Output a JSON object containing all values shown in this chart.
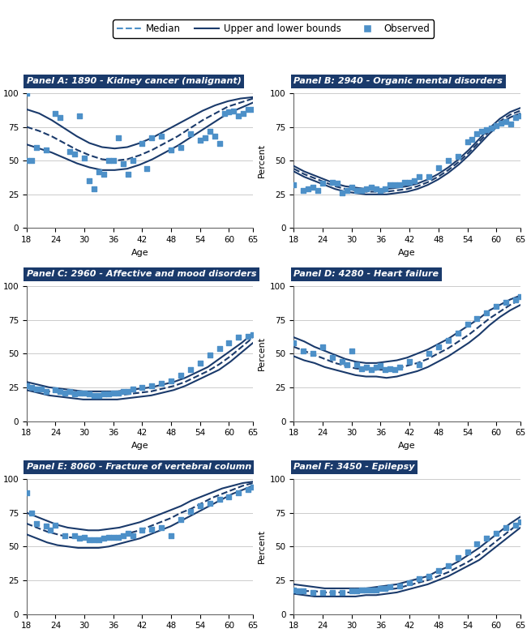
{
  "panels": [
    {
      "label": "Panel A: 1890 - Kidney cancer (malignant)",
      "median": [
        75,
        72,
        68,
        63,
        58,
        54,
        51,
        50,
        51,
        54,
        58,
        63,
        68,
        74,
        80,
        85,
        90,
        93,
        96
      ],
      "upper": [
        88,
        85,
        80,
        74,
        68,
        63,
        60,
        59,
        60,
        63,
        67,
        72,
        77,
        82,
        87,
        91,
        94,
        96,
        97
      ],
      "lower": [
        62,
        59,
        56,
        52,
        48,
        45,
        43,
        43,
        44,
        47,
        51,
        56,
        61,
        67,
        73,
        79,
        85,
        89,
        93
      ],
      "obs_x": [
        18,
        18,
        19,
        20,
        22,
        24,
        25,
        27,
        28,
        29,
        30,
        31,
        32,
        33,
        34,
        35,
        36,
        37,
        38,
        39,
        40,
        42,
        43,
        44,
        46,
        48,
        50,
        52,
        54,
        55,
        56,
        57,
        58,
        59,
        60,
        61,
        62,
        63,
        64,
        65
      ],
      "obs_y": [
        50,
        100,
        50,
        60,
        58,
        85,
        82,
        57,
        55,
        83,
        52,
        35,
        29,
        42,
        40,
        50,
        50,
        67,
        48,
        40,
        50,
        63,
        44,
        67,
        68,
        58,
        60,
        70,
        65,
        67,
        72,
        68,
        63,
        85,
        86,
        87,
        83,
        85,
        88,
        88
      ]
    },
    {
      "label": "Panel B: 2940 - Organic mental disorders",
      "median": [
        44,
        40,
        37,
        34,
        31,
        29,
        28,
        27,
        27,
        27,
        28,
        29,
        31,
        34,
        38,
        43,
        49,
        56,
        64,
        72,
        79,
        84,
        87
      ],
      "upper": [
        46,
        42,
        39,
        36,
        33,
        31,
        30,
        29,
        29,
        29,
        30,
        31,
        33,
        36,
        40,
        45,
        51,
        58,
        66,
        74,
        81,
        86,
        89
      ],
      "lower": [
        42,
        38,
        35,
        32,
        29,
        27,
        26,
        25,
        25,
        25,
        26,
        27,
        29,
        32,
        36,
        41,
        47,
        54,
        62,
        70,
        77,
        82,
        85
      ],
      "obs_x": [
        18,
        20,
        21,
        22,
        23,
        24,
        26,
        27,
        28,
        29,
        30,
        31,
        32,
        33,
        34,
        35,
        36,
        37,
        38,
        39,
        40,
        41,
        42,
        43,
        44,
        46,
        48,
        50,
        52,
        54,
        55,
        56,
        57,
        58,
        59,
        60,
        61,
        62,
        63,
        64,
        65
      ],
      "obs_y": [
        32,
        28,
        29,
        30,
        28,
        33,
        34,
        33,
        26,
        28,
        30,
        28,
        28,
        29,
        30,
        29,
        28,
        29,
        32,
        32,
        32,
        34,
        34,
        35,
        38,
        38,
        45,
        50,
        53,
        64,
        66,
        70,
        72,
        73,
        74,
        76,
        78,
        79,
        77,
        82,
        83
      ]
    },
    {
      "label": "Panel C: 2960 - Affective and mood disorders",
      "median": [
        26,
        24,
        22,
        21,
        20,
        19,
        19,
        19,
        19,
        20,
        21,
        22,
        24,
        26,
        29,
        33,
        37,
        42,
        48,
        55,
        62
      ],
      "upper": [
        29,
        27,
        25,
        24,
        23,
        22,
        22,
        22,
        22,
        23,
        24,
        25,
        27,
        29,
        32,
        36,
        40,
        46,
        52,
        58,
        65
      ],
      "lower": [
        23,
        21,
        19,
        18,
        17,
        16,
        16,
        16,
        16,
        17,
        18,
        19,
        21,
        23,
        26,
        30,
        34,
        38,
        44,
        51,
        58
      ],
      "obs_x": [
        18,
        19,
        20,
        21,
        22,
        24,
        25,
        26,
        27,
        28,
        29,
        30,
        31,
        32,
        33,
        34,
        35,
        36,
        37,
        38,
        39,
        40,
        42,
        44,
        46,
        48,
        50,
        52,
        54,
        56,
        58,
        60,
        62,
        64,
        65
      ],
      "obs_y": [
        26,
        25,
        24,
        24,
        22,
        23,
        22,
        21,
        22,
        20,
        21,
        21,
        20,
        19,
        19,
        20,
        20,
        21,
        21,
        22,
        22,
        24,
        25,
        26,
        28,
        30,
        34,
        38,
        43,
        49,
        54,
        58,
        62,
        63,
        64
      ]
    },
    {
      "label": "Panel D: 4280 - Heart failure",
      "median": [
        55,
        52,
        49,
        46,
        43,
        41,
        39,
        38,
        38,
        38,
        39,
        41,
        43,
        46,
        50,
        54,
        59,
        64,
        70,
        76,
        81,
        86,
        90
      ],
      "upper": [
        62,
        59,
        55,
        52,
        49,
        46,
        44,
        43,
        43,
        44,
        45,
        47,
        50,
        53,
        57,
        61,
        66,
        71,
        76,
        82,
        86,
        90,
        93
      ],
      "lower": [
        48,
        45,
        43,
        40,
        38,
        36,
        34,
        33,
        33,
        32,
        33,
        35,
        37,
        40,
        44,
        48,
        53,
        58,
        64,
        71,
        77,
        82,
        86
      ],
      "obs_x": [
        18,
        20,
        22,
        24,
        26,
        28,
        29,
        30,
        31,
        32,
        33,
        34,
        35,
        36,
        37,
        38,
        39,
        40,
        42,
        44,
        46,
        48,
        50,
        52,
        54,
        56,
        58,
        60,
        62,
        64,
        65
      ],
      "obs_y": [
        58,
        52,
        50,
        55,
        47,
        44,
        42,
        52,
        42,
        39,
        40,
        38,
        40,
        41,
        38,
        39,
        38,
        40,
        44,
        42,
        50,
        55,
        60,
        65,
        72,
        76,
        80,
        85,
        88,
        90,
        92
      ]
    },
    {
      "label": "Panel E: 8060 - Fracture of vertebral column",
      "median": [
        67,
        64,
        61,
        59,
        57,
        56,
        56,
        56,
        57,
        58,
        60,
        62,
        65,
        68,
        71,
        75,
        78,
        82,
        86,
        89,
        92,
        95,
        97
      ],
      "upper": [
        75,
        72,
        69,
        66,
        64,
        63,
        62,
        62,
        63,
        64,
        66,
        68,
        71,
        74,
        77,
        80,
        84,
        87,
        90,
        93,
        95,
        97,
        98
      ],
      "lower": [
        59,
        56,
        53,
        51,
        50,
        49,
        49,
        49,
        50,
        52,
        54,
        56,
        59,
        62,
        65,
        69,
        73,
        77,
        81,
        85,
        89,
        92,
        95
      ],
      "obs_x": [
        18,
        19,
        20,
        22,
        23,
        24,
        26,
        28,
        29,
        30,
        31,
        32,
        33,
        34,
        35,
        36,
        37,
        38,
        39,
        40,
        42,
        44,
        46,
        48,
        50,
        52,
        54,
        56,
        58,
        60,
        62,
        64,
        65
      ],
      "obs_y": [
        90,
        75,
        67,
        65,
        62,
        66,
        58,
        58,
        56,
        57,
        55,
        55,
        55,
        56,
        57,
        57,
        57,
        58,
        60,
        58,
        62,
        63,
        64,
        58,
        70,
        76,
        80,
        82,
        85,
        87,
        90,
        92,
        94
      ]
    },
    {
      "label": "Panel F: 3450 - Epilepsy",
      "median": [
        18,
        17,
        17,
        16,
        16,
        16,
        16,
        17,
        17,
        18,
        19,
        21,
        23,
        25,
        28,
        31,
        35,
        39,
        44,
        50,
        56,
        62,
        68
      ],
      "upper": [
        22,
        21,
        20,
        19,
        19,
        19,
        19,
        19,
        20,
        21,
        22,
        24,
        26,
        28,
        32,
        35,
        39,
        44,
        49,
        55,
        61,
        67,
        72
      ],
      "lower": [
        15,
        14,
        13,
        13,
        13,
        13,
        13,
        14,
        14,
        15,
        16,
        18,
        20,
        22,
        25,
        28,
        32,
        36,
        40,
        46,
        52,
        58,
        64
      ],
      "obs_x": [
        18,
        19,
        20,
        22,
        24,
        26,
        28,
        30,
        31,
        32,
        33,
        34,
        35,
        36,
        37,
        38,
        40,
        42,
        44,
        46,
        48,
        50,
        52,
        54,
        56,
        58,
        60,
        62,
        64,
        65
      ],
      "obs_y": [
        18,
        17,
        17,
        16,
        16,
        16,
        16,
        17,
        17,
        18,
        18,
        18,
        18,
        19,
        19,
        20,
        21,
        23,
        26,
        28,
        32,
        36,
        42,
        46,
        52,
        56,
        60,
        64,
        66,
        68
      ]
    }
  ],
  "x_range": [
    18,
    65
  ],
  "x_ticks": [
    18,
    24,
    30,
    36,
    42,
    48,
    54,
    60,
    65
  ],
  "y_range": [
    0,
    100
  ],
  "y_ticks": [
    0,
    25,
    50,
    75,
    100
  ],
  "line_color": "#1a3a6b",
  "dashed_color": "#1a3a6b",
  "obs_color": "#4d90c8",
  "header_bg": "#1a3a6b",
  "header_text": "#ffffff",
  "grid_color": "#cccccc",
  "legend_dashed_color": "#4d90c8",
  "legend_solid_color": "#1a3a6b",
  "legend_obs_color": "#4d90c8"
}
